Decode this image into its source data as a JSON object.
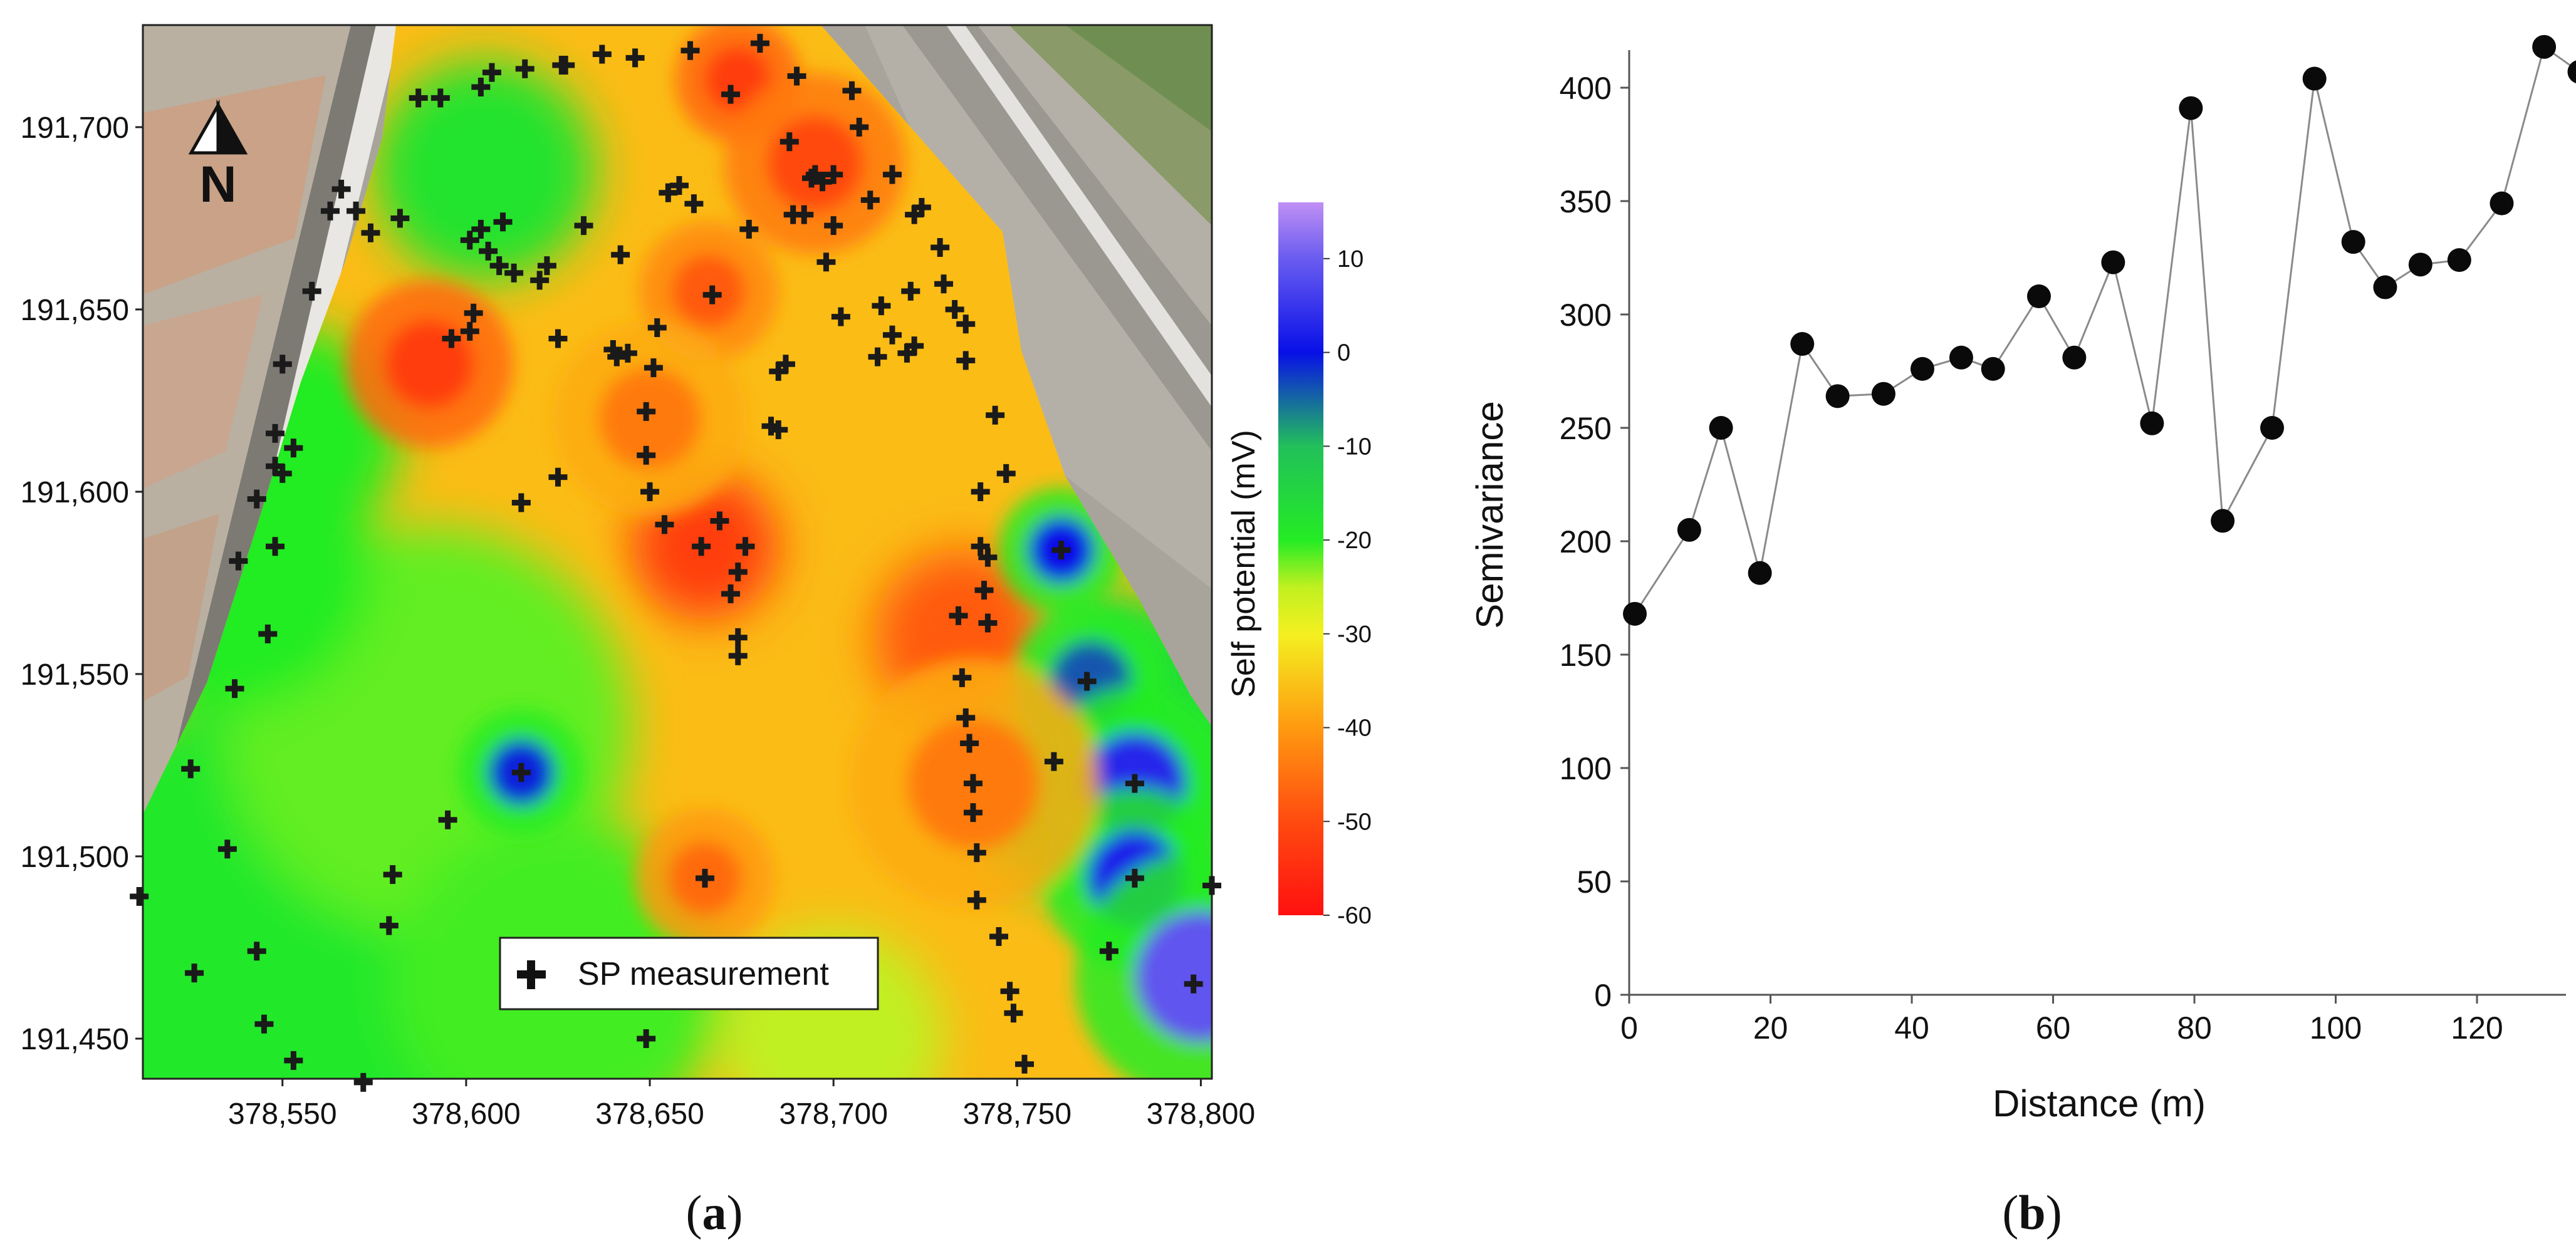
{
  "chart_data": [
    {
      "type": "heatmap",
      "panel_label": "(a)",
      "panel_letter": "a",
      "x_ticks": [
        378550,
        378600,
        378650,
        378700,
        378750,
        378800
      ],
      "x_tick_labels": [
        "378,550",
        "378,600",
        "378,650",
        "378,700",
        "378,750",
        "378,800"
      ],
      "y_ticks": [
        191450,
        191500,
        191550,
        191600,
        191650,
        191700
      ],
      "y_tick_labels": [
        "191,450",
        "191,500",
        "191,550",
        "191,600",
        "191,650",
        "191,700"
      ],
      "xlim": [
        378512,
        378803
      ],
      "ylim": [
        191439,
        191728
      ],
      "north_label": "N",
      "legend_label": "SP measurement",
      "colorbar": {
        "title": "Self potential (mV)",
        "range": [
          -60,
          16
        ],
        "ticks": [
          10,
          0,
          -10,
          -20,
          -30,
          -40,
          -50,
          -60
        ],
        "tick_labels": [
          "10",
          "0",
          "-10",
          "-20",
          "-30",
          "-40",
          "-50",
          "-60"
        ],
        "stops": [
          {
            "v": -60,
            "color": "#ff1010"
          },
          {
            "v": -50,
            "color": "#ff4a10"
          },
          {
            "v": -40,
            "color": "#ff9a10"
          },
          {
            "v": -30,
            "color": "#f4f020"
          },
          {
            "v": -25,
            "color": "#c0f020"
          },
          {
            "v": -20,
            "color": "#24ec24"
          },
          {
            "v": -10,
            "color": "#22c05a"
          },
          {
            "v": 0,
            "color": "#0810e8"
          },
          {
            "v": 10,
            "color": "#6a5cf0"
          },
          {
            "v": 16,
            "color": "#c08ff4"
          }
        ]
      },
      "background_value": -36,
      "anomalies": [
        {
          "x": 378605,
          "y": 191688,
          "v": -18,
          "r": 30
        },
        {
          "x": 378545,
          "y": 191470,
          "v": -19,
          "r": 72
        },
        {
          "x": 378590,
          "y": 191535,
          "v": -22,
          "r": 55
        },
        {
          "x": 378535,
          "y": 191580,
          "v": -20,
          "r": 40
        },
        {
          "x": 378552,
          "y": 191615,
          "v": -20,
          "r": 30
        },
        {
          "x": 378625,
          "y": 191465,
          "v": -21,
          "r": 45
        },
        {
          "x": 378700,
          "y": 191450,
          "v": -25,
          "r": 30
        },
        {
          "x": 378615,
          "y": 191523,
          "v": -1,
          "r": 9
        },
        {
          "x": 378762,
          "y": 191584,
          "v": 0,
          "r": 9
        },
        {
          "x": 378770,
          "y": 191548,
          "v": -4,
          "r": 11
        },
        {
          "x": 378782,
          "y": 191520,
          "v": 3,
          "r": 14
        },
        {
          "x": 378782,
          "y": 191494,
          "v": 2,
          "r": 13
        },
        {
          "x": 378800,
          "y": 191467,
          "v": 9,
          "r": 18
        },
        {
          "x": 378775,
          "y": 191530,
          "v": -17,
          "r": 42
        },
        {
          "x": 378674,
          "y": 191713,
          "v": -52,
          "r": 9
        },
        {
          "x": 378695,
          "y": 191690,
          "v": -50,
          "r": 13
        },
        {
          "x": 378590,
          "y": 191635,
          "v": -52,
          "r": 12
        },
        {
          "x": 378665,
          "y": 191585,
          "v": -52,
          "r": 20
        },
        {
          "x": 378666,
          "y": 191655,
          "v": -48,
          "r": 10
        },
        {
          "x": 378735,
          "y": 191560,
          "v": -48,
          "r": 24
        },
        {
          "x": 378738,
          "y": 191520,
          "v": -44,
          "r": 18
        },
        {
          "x": 378665,
          "y": 191494,
          "v": -46,
          "r": 10
        },
        {
          "x": 378650,
          "y": 191620,
          "v": -44,
          "r": 14
        }
      ],
      "measurement_points": [
        [
          378511,
          191489
        ],
        [
          378525,
          191524
        ],
        [
          378526,
          191468
        ],
        [
          378535,
          191502
        ],
        [
          378537,
          191546
        ],
        [
          378538,
          191581
        ],
        [
          378543,
          191598
        ],
        [
          378546,
          191561
        ],
        [
          378548,
          191585
        ],
        [
          378548,
          191607
        ],
        [
          378548,
          191616
        ],
        [
          378550,
          191605
        ],
        [
          378550,
          191635
        ],
        [
          378553,
          191612
        ],
        [
          378553,
          191444
        ],
        [
          378545,
          191454
        ],
        [
          378543,
          191474
        ],
        [
          378572,
          191438
        ],
        [
          378579,
          191481
        ],
        [
          378580,
          191495
        ],
        [
          378595,
          191510
        ],
        [
          378615,
          191523
        ],
        [
          378649,
          191450
        ],
        [
          378665,
          191494
        ],
        [
          378558,
          191655
        ],
        [
          378563,
          191677
        ],
        [
          378566,
          191683
        ],
        [
          378570,
          191677
        ],
        [
          378574,
          191671
        ],
        [
          378582,
          191675
        ],
        [
          378587,
          191708
        ],
        [
          378593,
          191708
        ],
        [
          378596,
          191642
        ],
        [
          378601,
          191644
        ],
        [
          378602,
          191649
        ],
        [
          378601,
          191669
        ],
        [
          378604,
          191672
        ],
        [
          378604,
          191711
        ],
        [
          378607,
          191715
        ],
        [
          378606,
          191666
        ],
        [
          378609,
          191662
        ],
        [
          378610,
          191674
        ],
        [
          378613,
          191660
        ],
        [
          378615,
          191597
        ],
        [
          378616,
          191716
        ],
        [
          378620,
          191658
        ],
        [
          378622,
          191662
        ],
        [
          378625,
          191604
        ],
        [
          378625,
          191642
        ],
        [
          378627,
          191717
        ],
        [
          378632,
          191673
        ],
        [
          378637,
          191720
        ],
        [
          378641,
          191637
        ],
        [
          378642,
          191665
        ],
        [
          378644,
          191638
        ],
        [
          378646,
          191719
        ],
        [
          378649,
          191622
        ],
        [
          378649,
          191610
        ],
        [
          378650,
          191600
        ],
        [
          378651,
          191634
        ],
        [
          378652,
          191645
        ],
        [
          378654,
          191591
        ],
        [
          378655,
          191682
        ],
        [
          378658,
          191684
        ],
        [
          378661,
          191721
        ],
        [
          378664,
          191585
        ],
        [
          378667,
          191654
        ],
        [
          378669,
          191592
        ],
        [
          378672,
          191572
        ],
        [
          378672,
          191709
        ],
        [
          378674,
          191578
        ],
        [
          378674,
          191560
        ],
        [
          378674,
          191555
        ],
        [
          378676,
          191585
        ],
        [
          378677,
          191672
        ],
        [
          378680,
          191723
        ],
        [
          378683,
          191618
        ],
        [
          378685,
          191617
        ],
        [
          378685,
          191633
        ],
        [
          378687,
          191635
        ],
        [
          378688,
          191696
        ],
        [
          378692,
          191676
        ],
        [
          378694,
          191686
        ],
        [
          378697,
          191685
        ],
        [
          378698,
          191663
        ],
        [
          378700,
          191673
        ],
        [
          378700,
          191687
        ],
        [
          378702,
          191648
        ],
        [
          378705,
          191710
        ],
        [
          378707,
          191700
        ],
        [
          378712,
          191637
        ],
        [
          378713,
          191651
        ],
        [
          378716,
          191687
        ],
        [
          378720,
          191638
        ],
        [
          378722,
          191640
        ],
        [
          378721,
          191655
        ],
        [
          378722,
          191676
        ],
        [
          378724,
          191678
        ],
        [
          378729,
          191667
        ],
        [
          378730,
          191657
        ],
        [
          378733,
          191650
        ],
        [
          378736,
          191646
        ],
        [
          378736,
          191636
        ],
        [
          378734,
          191566
        ],
        [
          378735,
          191549
        ],
        [
          378736,
          191538
        ],
        [
          378737,
          191531
        ],
        [
          378738,
          191520
        ],
        [
          378738,
          191512
        ],
        [
          378739,
          191501
        ],
        [
          378739,
          191488
        ],
        [
          378740,
          191600
        ],
        [
          378740,
          191585
        ],
        [
          378741,
          191573
        ],
        [
          378742,
          191564
        ],
        [
          378742,
          191582
        ],
        [
          378744,
          191621
        ],
        [
          378745,
          191478
        ],
        [
          378747,
          191605
        ],
        [
          378748,
          191463
        ],
        [
          378749,
          191457
        ],
        [
          378752,
          191443
        ],
        [
          378760,
          191526
        ],
        [
          378762,
          191584
        ],
        [
          378769,
          191548
        ],
        [
          378775,
          191474
        ],
        [
          378782,
          191520
        ],
        [
          378782,
          191494
        ],
        [
          378798,
          191465
        ],
        [
          378803,
          191492
        ],
        [
          378690,
          191714
        ],
        [
          378695,
          191687
        ],
        [
          378626,
          191717
        ],
        [
          378640,
          191639
        ],
        [
          378662,
          191679
        ],
        [
          378689,
          191676
        ],
        [
          378710,
          191680
        ],
        [
          378716,
          191643
        ]
      ]
    },
    {
      "type": "scatter",
      "panel_label": "(b)",
      "panel_letter": "b",
      "xlabel": "Distance (m)",
      "ylabel": "Semivariance",
      "xlim": [
        0,
        135
      ],
      "ylim": [
        0,
        420
      ],
      "x_ticks": [
        0,
        20,
        40,
        60,
        80,
        100,
        120
      ],
      "y_ticks": [
        0,
        50,
        100,
        150,
        200,
        250,
        300,
        350,
        400
      ],
      "connected": true,
      "x": [
        0.8,
        8.5,
        13,
        18.5,
        24.5,
        29.5,
        36,
        41.5,
        47,
        51.5,
        58,
        63,
        68.5,
        74,
        79.5,
        84,
        91,
        97,
        102.5,
        107,
        112,
        117.5,
        123.5,
        129.5,
        134.5
      ],
      "y": [
        168,
        205,
        250,
        186,
        287,
        264,
        265,
        276,
        281,
        276,
        308,
        281,
        323,
        252,
        391,
        209,
        250,
        404,
        332,
        312,
        322,
        324,
        349,
        418,
        407
      ]
    }
  ]
}
